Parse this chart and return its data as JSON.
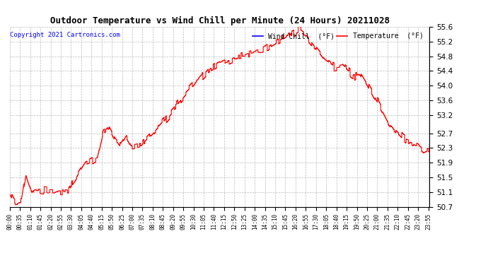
{
  "title": "Outdoor Temperature vs Wind Chill per Minute (24 Hours) 20211028",
  "copyright": "Copyright 2021 Cartronics.com",
  "legend_wind_chill": "Wind Chill  (°F)",
  "legend_temperature": "Temperature  (°F)",
  "wind_chill_color": "blue",
  "temperature_color": "red",
  "line_color": "red",
  "background_color": "white",
  "grid_color": "#aaaaaa",
  "ylim": [
    50.7,
    55.6
  ],
  "yticks": [
    50.7,
    51.1,
    51.5,
    51.9,
    52.3,
    52.7,
    53.2,
    53.6,
    54.0,
    54.4,
    54.8,
    55.2,
    55.6
  ],
  "figsize": [
    6.9,
    3.75
  ],
  "dpi": 100
}
